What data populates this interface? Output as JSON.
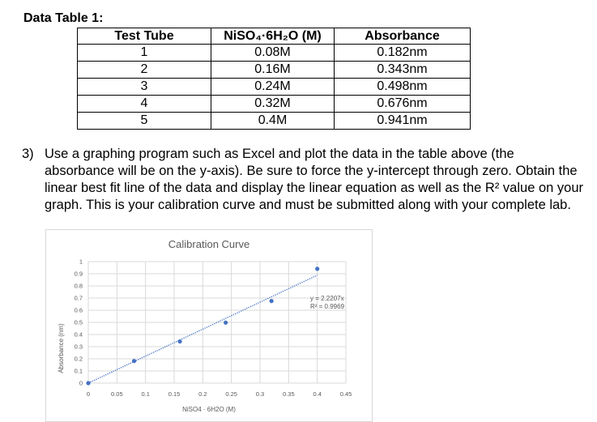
{
  "heading": "Data Table 1:",
  "table": {
    "headers": [
      "Test Tube",
      "NiSO₄·6H₂O (M)",
      "Absorbance"
    ],
    "rows": [
      [
        "1",
        "0.08M",
        "0.182nm"
      ],
      [
        "2",
        "0.16M",
        "0.343nm"
      ],
      [
        "3",
        "0.24M",
        "0.498nm"
      ],
      [
        "4",
        "0.32M",
        "0.676nm"
      ],
      [
        "5",
        "0.4M",
        "0.941nm"
      ]
    ]
  },
  "instruction": {
    "number": "3)",
    "text": "Use a graphing program such as Excel and plot the data in the table above (the absorbance will be on the y-axis).  Be sure to force the y-intercept through zero. Obtain the linear best fit line of the data and display the linear equation as well as the R² value on your graph.  This is your calibration curve and must be submitted along with your complete lab."
  },
  "chart_data": {
    "type": "scatter",
    "title": "Calibration Curve",
    "xlabel": "NiSO4 · 6H2O (M)",
    "ylabel": "Absorbance (nm)",
    "xlim": [
      0,
      0.45
    ],
    "ylim": [
      0,
      1
    ],
    "x_ticks": [
      "0",
      "0.05",
      "0.1",
      "0.15",
      "0.2",
      "0.25",
      "0.3",
      "0.35",
      "0.4",
      "0.45"
    ],
    "y_ticks": [
      "0",
      "0.1",
      "0.2",
      "0.3",
      "0.4",
      "0.5",
      "0.6",
      "0.7",
      "0.8",
      "0.9",
      "1"
    ],
    "points": [
      {
        "x": 0,
        "y": 0
      },
      {
        "x": 0.08,
        "y": 0.182
      },
      {
        "x": 0.16,
        "y": 0.343
      },
      {
        "x": 0.24,
        "y": 0.498
      },
      {
        "x": 0.32,
        "y": 0.676
      },
      {
        "x": 0.4,
        "y": 0.941
      }
    ],
    "trendline": {
      "slope": 2.2207,
      "style": "dotted",
      "x_range": [
        0,
        0.4
      ]
    },
    "equation_label": "y = 2.2207x",
    "r2_label": "R² = 0.9969",
    "grid": true,
    "marker_color": "#4472c4",
    "grid_color": "#d9d9d9"
  }
}
